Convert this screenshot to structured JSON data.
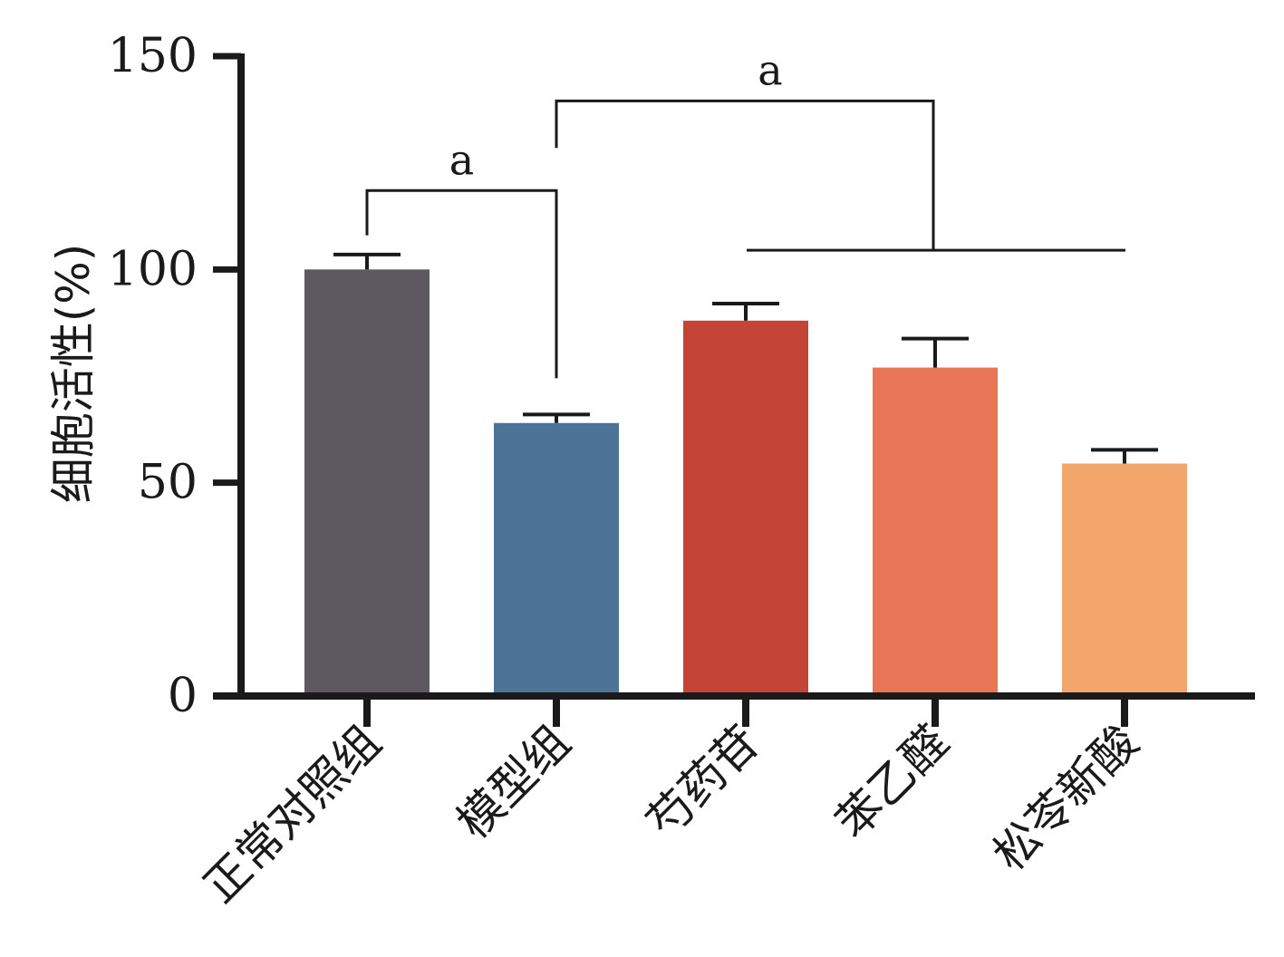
{
  "chart_data": {
    "type": "bar",
    "title": "",
    "xlabel": "",
    "ylabel": "细胞活性(%)",
    "ylim": [
      0,
      150
    ],
    "yticks": [
      0,
      50,
      100,
      150
    ],
    "grid": false,
    "categories": [
      "正常对照组",
      "模型组",
      "芍药苷",
      "苯乙醛",
      "松苓新酸"
    ],
    "values": [
      100,
      64,
      88,
      77,
      54.5
    ],
    "errors": [
      3.5,
      2,
      4,
      6.8,
      3.2
    ],
    "colors": [
      "#5e5860",
      "#4d7397",
      "#c44536",
      "#e87656",
      "#f2a66b"
    ],
    "significance": [
      {
        "label": "a",
        "from": "正常对照组",
        "to": "模型组"
      },
      {
        "label": "a",
        "from": "模型组",
        "to": [
          "芍药苷",
          "苯乙醛",
          "松苓新酸"
        ]
      }
    ]
  }
}
